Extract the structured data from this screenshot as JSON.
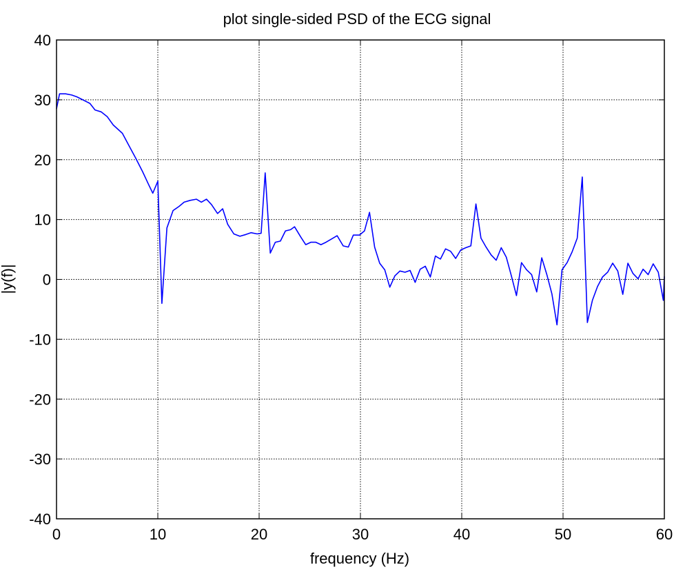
{
  "chart_data": {
    "type": "line",
    "title": "plot single-sided PSD of the ECG signal",
    "xlabel": "frequency (Hz)",
    "ylabel": "|y(f)|",
    "xlim": [
      0,
      60
    ],
    "ylim": [
      -40,
      40
    ],
    "xticks": [
      0,
      10,
      20,
      30,
      40,
      50,
      60
    ],
    "yticks": [
      -40,
      -30,
      -20,
      -10,
      0,
      10,
      20,
      30,
      40
    ],
    "xtick_labels": [
      "0",
      "10",
      "20",
      "30",
      "40",
      "50",
      "60"
    ],
    "ytick_labels": [
      "-40",
      "-30",
      "-20",
      "-10",
      "0",
      "10",
      "20",
      "30",
      "40"
    ],
    "grid": true,
    "line_color": "#0000ff",
    "series": [
      {
        "x": [
          0,
          0.3,
          0.9,
          1.5,
          2,
          2.6,
          3.3,
          3.8,
          4.4,
          5,
          5.6,
          6.5,
          7.2,
          7.8,
          8.5,
          9.1,
          9.5,
          10,
          10.4,
          10.9,
          11.5,
          12.1,
          12.6,
          13.2,
          13.8,
          14.3,
          14.8,
          15.3,
          15.9,
          16.4,
          16.9,
          17.5,
          18.1,
          18.7,
          19.2,
          19.8,
          20.2,
          20.6,
          21.1,
          21.6,
          22.1,
          22.6,
          23.1,
          23.5,
          24.1,
          24.6,
          25.1,
          25.6,
          26.1,
          26.6,
          27.2,
          27.7,
          28.3,
          28.8,
          29.3,
          29.9,
          30.4,
          30.9,
          31.4,
          31.9,
          32.4,
          32.9,
          33.4,
          33.9,
          34.4,
          34.9,
          35.4,
          35.9,
          36.4,
          36.9,
          37.4,
          37.9,
          38.4,
          38.9,
          39.4,
          39.9,
          40.4,
          40.9,
          41.4,
          41.9,
          42.4,
          42.9,
          43.4,
          43.9,
          44.4,
          44.9,
          45.4,
          45.9,
          46.4,
          46.9,
          47.4,
          47.9,
          48.4,
          48.9,
          49.4,
          49.9,
          50.4,
          50.9,
          51.4,
          51.9,
          52.4,
          52.9,
          53.4,
          53.9,
          54.4,
          54.9,
          55.4,
          55.9,
          56.4,
          56.9,
          57.4,
          57.9,
          58.4,
          58.9,
          59.4,
          59.9,
          60
        ],
        "y": [
          28.5,
          31,
          31,
          30.8,
          30.5,
          30,
          29.4,
          28.3,
          28,
          27.2,
          25.8,
          24.4,
          22.2,
          20.3,
          18,
          15.8,
          14.4,
          16.4,
          -4,
          8.6,
          11.5,
          12.2,
          12.9,
          13.2,
          13.4,
          12.9,
          13.4,
          12.5,
          11.0,
          11.8,
          9.2,
          7.6,
          7.2,
          7.5,
          7.8,
          7.6,
          7.7,
          17.8,
          4.4,
          6.2,
          6.4,
          8.1,
          8.3,
          8.8,
          7.1,
          5.8,
          6.2,
          6.2,
          5.8,
          6.2,
          6.8,
          7.3,
          5.6,
          5.4,
          7.4,
          7.4,
          8.1,
          11.2,
          5.4,
          2.7,
          1.6,
          -1.3,
          0.6,
          1.4,
          1.2,
          1.5,
          -0.5,
          1.7,
          2.2,
          0.4,
          3.9,
          3.4,
          5.1,
          4.7,
          3.5,
          4.9,
          5.3,
          5.6,
          12.6,
          6.9,
          5.4,
          4.1,
          3.2,
          5.3,
          3.7,
          0.6,
          -2.7,
          2.8,
          1.6,
          0.8,
          -2.1,
          3.6,
          0.8,
          -2.4,
          -7.6,
          1.6,
          2.8,
          4.6,
          6.9,
          17.1,
          -7.2,
          -3.5,
          -1.2,
          0.4,
          1.2,
          2.7,
          1.4,
          -2.5,
          2.7,
          1.0,
          0.1,
          1.7,
          0.8,
          2.6,
          1.2,
          -3.5,
          0.5
        ]
      }
    ]
  }
}
